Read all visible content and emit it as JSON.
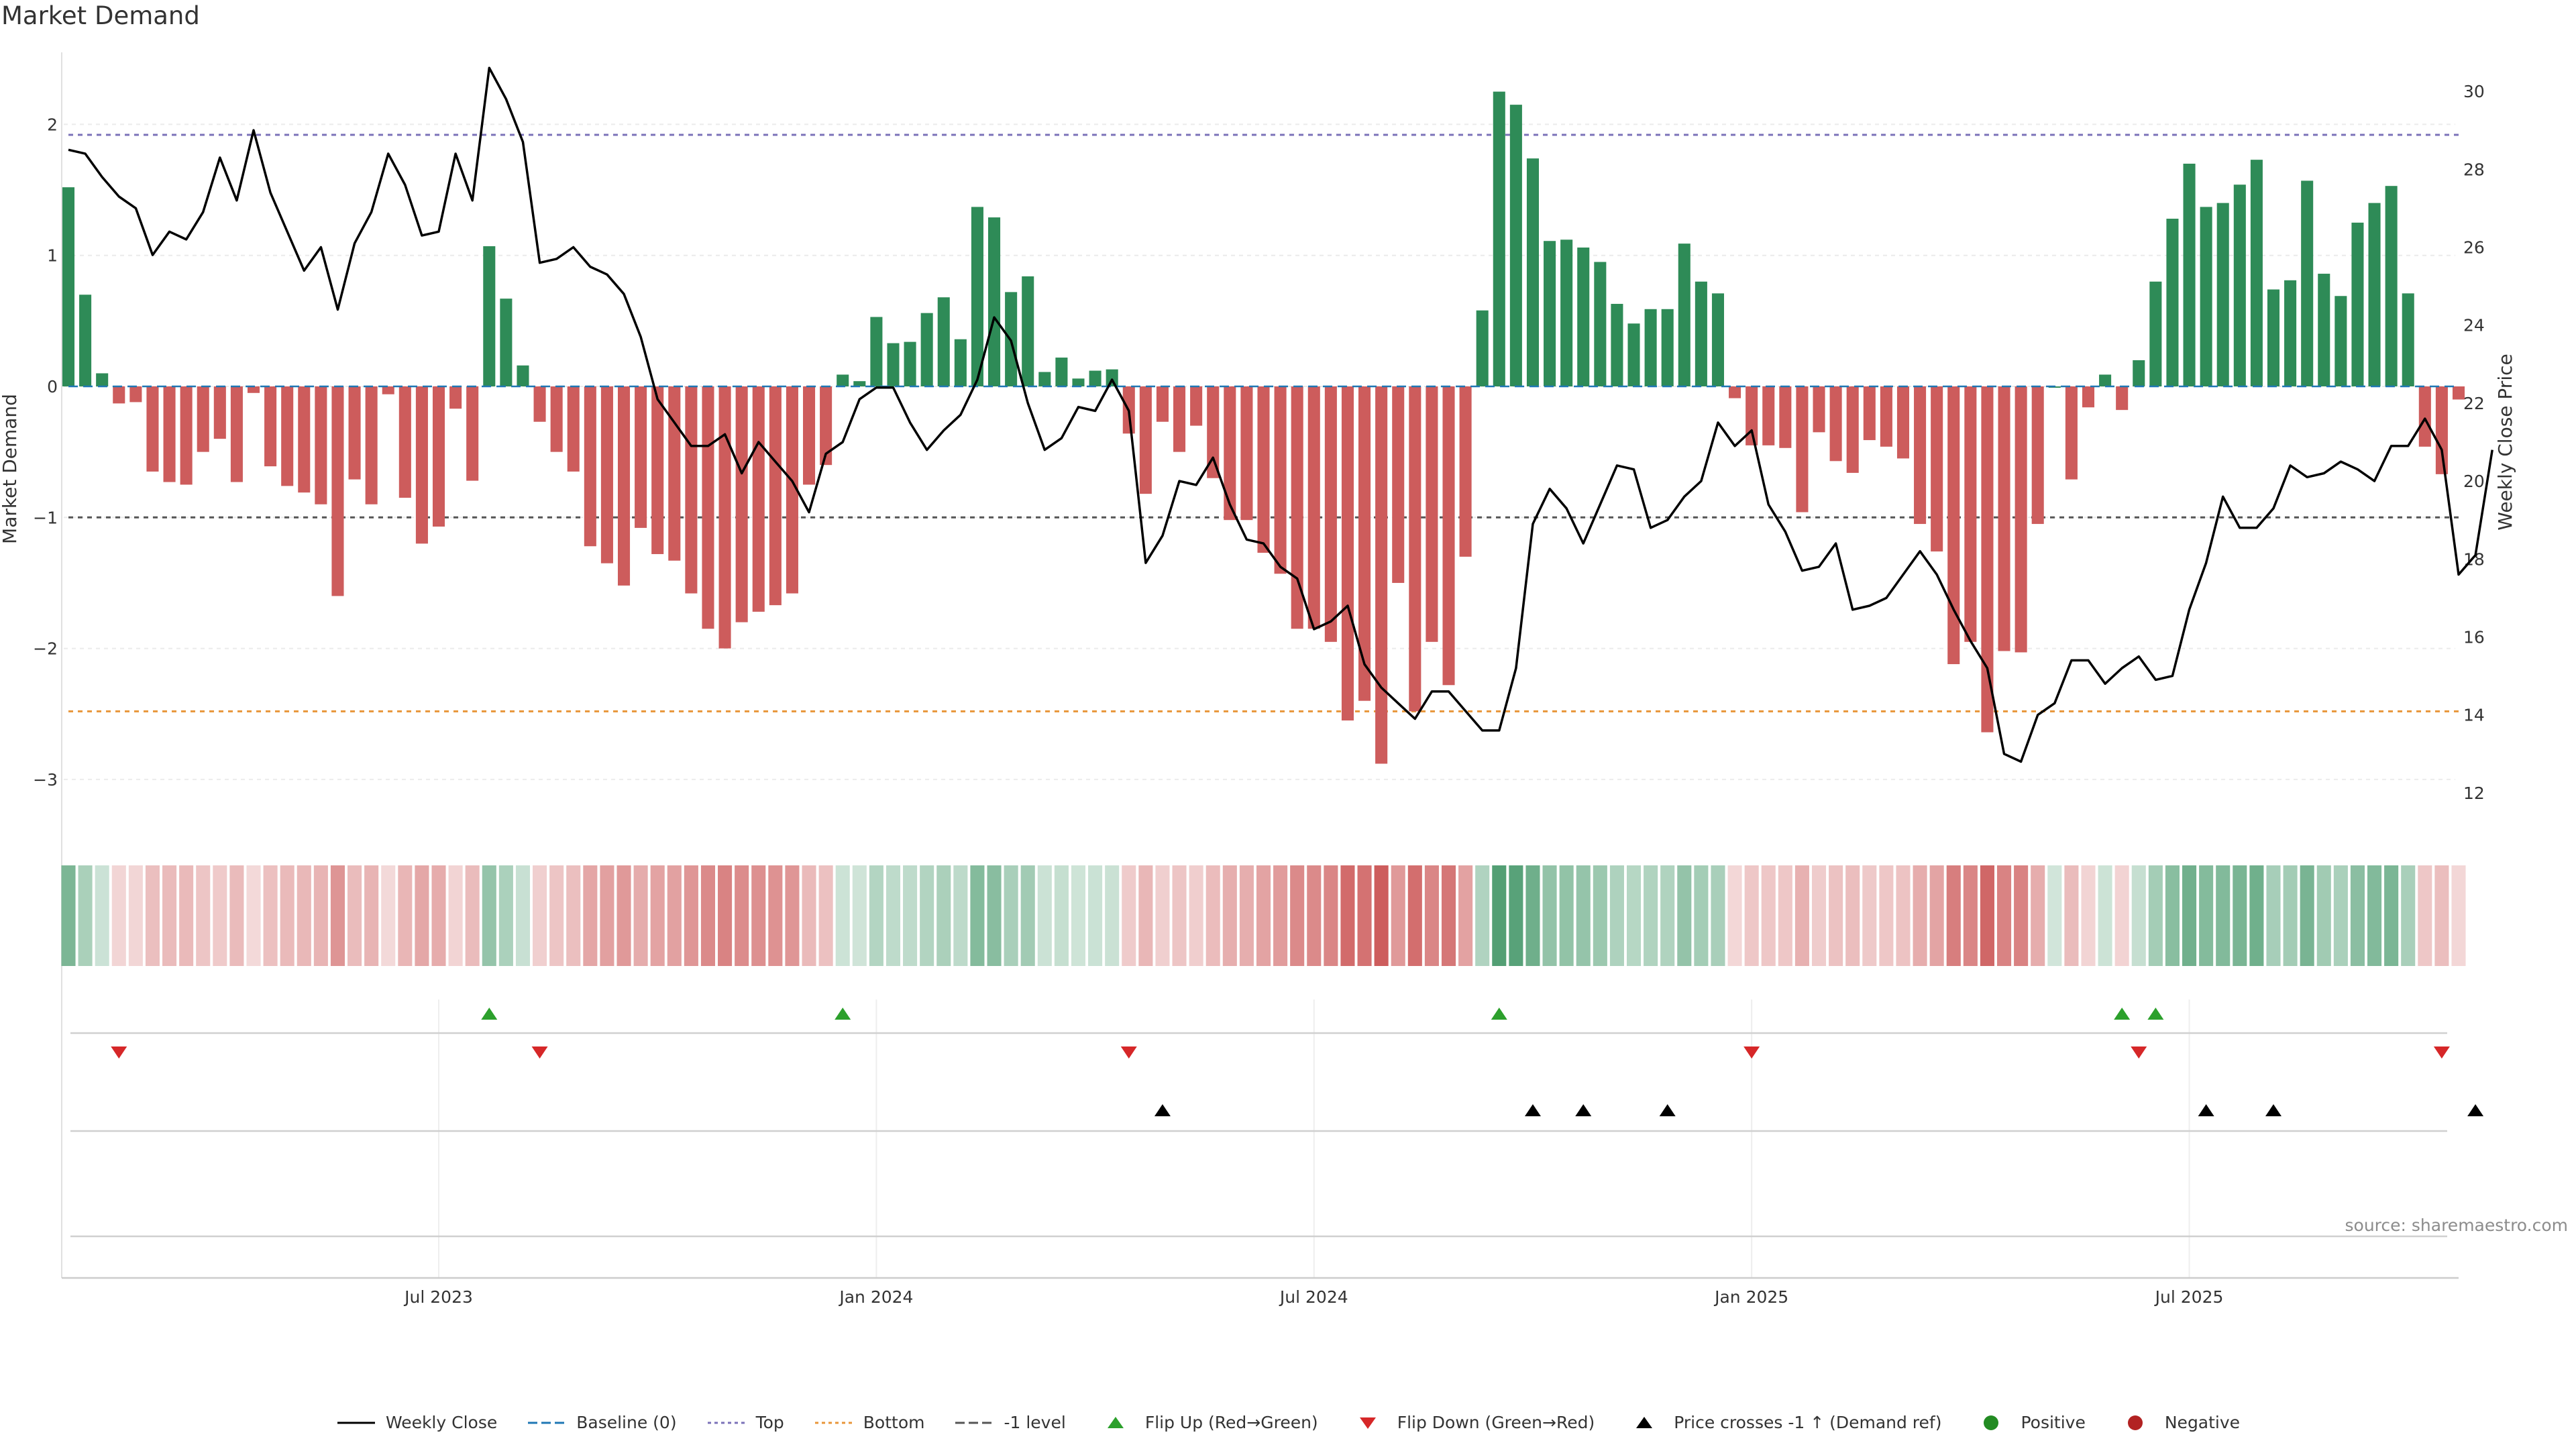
{
  "title": "Market Demand",
  "source": "source: sharemaestro.com",
  "colors": {
    "pos": "#2e8b57",
    "neg": "#cd5c5c",
    "price": "#000000",
    "top": "#7b72b8",
    "bottom": "#e8963a",
    "minus1": "#555555",
    "baseline": "#1f77b4",
    "flip_up": "#2ca02c",
    "flip_down": "#d62728",
    "positive_dot": "#228b22",
    "negative_dot": "#b22222"
  },
  "legend": [
    {
      "label": "Weekly Close",
      "type": "line",
      "color": "#000000"
    },
    {
      "label": "Baseline (0)",
      "type": "dash",
      "color": "#1f77b4"
    },
    {
      "label": "Top",
      "type": "dot",
      "color": "#7b72b8"
    },
    {
      "label": "Bottom",
      "type": "dot",
      "color": "#e8963a"
    },
    {
      "label": "-1 level",
      "type": "dash",
      "color": "#555555"
    },
    {
      "label": "Flip Up (Red→Green)",
      "type": "tri-up",
      "color": "#2ca02c"
    },
    {
      "label": "Flip Down (Green→Red)",
      "type": "tri-down",
      "color": "#d62728"
    },
    {
      "label": "Price crosses -1 ↑ (Demand ref)",
      "type": "tri-up",
      "color": "#000000"
    },
    {
      "label": "Positive",
      "type": "circle",
      "color": "#228b22"
    },
    {
      "label": "Negative",
      "type": "circle",
      "color": "#b22222"
    }
  ],
  "chart_data": {
    "type": "bar",
    "title": "Market Demand",
    "ylabel": "Market Demand",
    "y2label": "Weekly Close Price",
    "ylim": [
      -3.4,
      2.55
    ],
    "y2lim": [
      11,
      31
    ],
    "yticks": [
      2,
      1,
      0,
      -1,
      -2,
      -3
    ],
    "yticklabels": [
      "2",
      "1",
      "0",
      "−1",
      "−2",
      "−3"
    ],
    "y2ticks": [
      30,
      28,
      26,
      24,
      22,
      20,
      18,
      16,
      14,
      12
    ],
    "levels": {
      "top": 1.92,
      "bottom": -2.48,
      "minus1": -1.0,
      "baseline": 0
    },
    "xticks": [
      {
        "index": 22,
        "label": "Jul 2023"
      },
      {
        "index": 48,
        "label": "Jan 2024"
      },
      {
        "index": 74,
        "label": "Jul 2024"
      },
      {
        "index": 100,
        "label": "Jan 2025"
      },
      {
        "index": 126,
        "label": "Jul 2025"
      }
    ],
    "demand": [
      1.52,
      0.7,
      0.1,
      -0.13,
      -0.12,
      -0.65,
      -0.73,
      -0.75,
      -0.5,
      -0.4,
      -0.73,
      -0.05,
      -0.61,
      -0.76,
      -0.81,
      -0.9,
      -1.6,
      -0.71,
      -0.9,
      -0.06,
      -0.85,
      -1.2,
      -1.07,
      -0.17,
      -0.72,
      1.07,
      0.67,
      0.16,
      -0.27,
      -0.5,
      -0.65,
      -1.22,
      -1.35,
      -1.52,
      -1.08,
      -1.28,
      -1.33,
      -1.58,
      -1.85,
      -2.0,
      -1.8,
      -1.72,
      -1.67,
      -1.58,
      -0.75,
      -0.6,
      0.09,
      0.04,
      0.53,
      0.33,
      0.34,
      0.56,
      0.68,
      0.36,
      1.37,
      1.29,
      0.72,
      0.84,
      0.11,
      0.22,
      0.06,
      0.12,
      0.13,
      -0.36,
      -0.82,
      -0.27,
      -0.5,
      -0.3,
      -0.7,
      -1.02,
      -1.02,
      -1.27,
      -1.43,
      -1.85,
      -1.85,
      -1.95,
      -2.55,
      -2.4,
      -2.88,
      -1.5,
      -2.48,
      -1.95,
      -2.28,
      -1.3,
      0.58,
      2.25,
      2.15,
      1.74,
      1.11,
      1.12,
      1.06,
      0.95,
      0.63,
      0.48,
      0.59,
      0.59,
      1.09,
      0.8,
      0.71,
      -0.09,
      -0.45,
      -0.45,
      -0.47,
      -0.96,
      -0.35,
      -0.57,
      -0.66,
      -0.41,
      -0.46,
      -0.55,
      -1.05,
      -1.26,
      -2.12,
      -1.95,
      -2.64,
      -2.02,
      -2.03,
      -1.05,
      0.0,
      -0.71,
      -0.16,
      0.09,
      -0.18,
      0.2,
      0.8,
      1.28,
      1.7,
      1.37,
      1.4,
      1.54,
      1.73,
      0.74,
      0.81,
      1.57,
      0.86,
      0.69,
      1.25,
      1.4,
      1.53,
      0.71,
      -0.46,
      -0.67,
      -0.1
    ],
    "price": [
      28.5,
      28.4,
      27.8,
      27.3,
      27.0,
      25.8,
      26.4,
      26.2,
      26.9,
      28.3,
      27.2,
      29.0,
      27.4,
      26.4,
      25.4,
      26.0,
      24.4,
      26.1,
      26.9,
      28.4,
      27.6,
      26.3,
      26.4,
      28.4,
      27.2,
      30.6,
      29.8,
      28.7,
      25.6,
      25.7,
      26.0,
      25.5,
      25.3,
      24.8,
      23.7,
      22.1,
      21.5,
      20.9,
      20.9,
      21.2,
      20.2,
      21.0,
      20.5,
      20.0,
      19.2,
      20.7,
      21.0,
      22.1,
      22.4,
      22.4,
      21.5,
      20.8,
      21.3,
      21.7,
      22.6,
      24.2,
      23.6,
      22.0,
      20.8,
      21.1,
      21.9,
      21.8,
      22.6,
      21.8,
      17.9,
      18.6,
      20.0,
      19.9,
      20.6,
      19.4,
      18.5,
      18.4,
      17.8,
      17.5,
      16.2,
      16.4,
      16.8,
      15.3,
      14.7,
      14.3,
      13.9,
      14.6,
      14.6,
      14.1,
      13.6,
      13.6,
      15.2,
      18.9,
      19.8,
      19.3,
      18.4,
      19.4,
      20.4,
      20.3,
      18.8,
      19.0,
      19.6,
      20.0,
      21.5,
      20.9,
      21.3,
      19.4,
      18.7,
      17.7,
      17.8,
      18.4,
      16.7,
      16.8,
      17.0,
      17.6,
      18.2,
      17.6,
      16.7,
      15.9,
      15.2,
      13.0,
      12.8,
      14.0,
      14.3,
      15.4,
      15.4,
      14.8,
      15.2,
      15.5,
      14.9,
      15.0,
      16.7,
      17.9,
      19.6,
      18.8,
      18.8,
      19.3,
      20.4,
      20.1,
      20.2,
      20.5,
      20.3,
      20.0,
      20.9,
      20.9,
      21.6,
      20.8,
      17.6,
      18.1,
      20.8
    ],
    "flip_up": [
      25,
      46,
      85,
      122,
      124
    ],
    "flip_down": [
      3,
      28,
      63,
      100,
      123,
      141
    ],
    "price_cross": [
      65,
      87,
      90,
      95,
      127,
      131,
      143
    ]
  }
}
